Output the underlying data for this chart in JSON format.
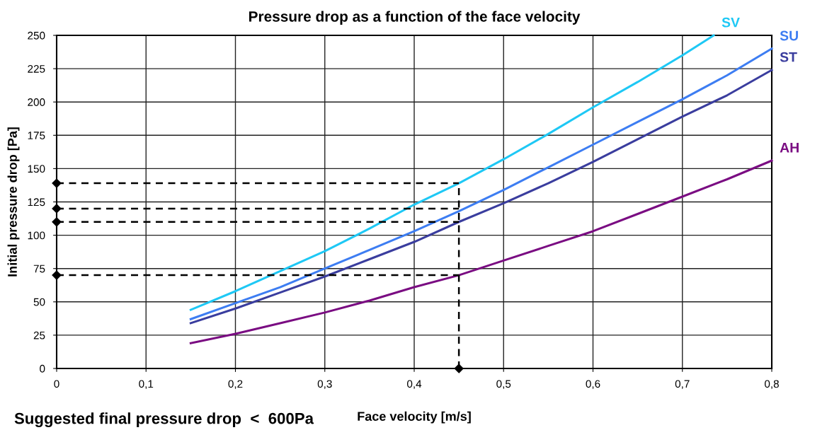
{
  "chart_data": {
    "type": "line",
    "title": "Pressure drop as a function of the face velocity",
    "xlabel": "Face velocity [m/s]",
    "ylabel": "Initial pressure drop [Pa]",
    "xlim": [
      0,
      0.8
    ],
    "ylim": [
      0,
      250
    ],
    "xticks": [
      0,
      {
        "value": 0.1,
        "label": "0,1"
      },
      {
        "value": 0.2,
        "label": "0,2"
      },
      {
        "value": 0.3,
        "label": "0,3"
      },
      {
        "value": 0.4,
        "label": "0,4"
      },
      {
        "value": 0.5,
        "label": "0,5"
      },
      {
        "value": 0.6,
        "label": "0,6"
      },
      {
        "value": 0.7,
        "label": "0,7"
      },
      {
        "value": 0.8,
        "label": "0,8"
      }
    ],
    "yticks": [
      0,
      25,
      50,
      75,
      100,
      125,
      150,
      175,
      200,
      225,
      250
    ],
    "grid": true,
    "legend": false,
    "series": [
      {
        "name": "SV",
        "color": "#1ec8f5",
        "x": [
          0.15,
          0.2,
          0.25,
          0.3,
          0.35,
          0.4,
          0.45,
          0.5,
          0.55,
          0.6,
          0.65,
          0.7,
          0.735
        ],
        "values": [
          44,
          58,
          73,
          88,
          105,
          123,
          139,
          157,
          176,
          196,
          215,
          235,
          250
        ]
      },
      {
        "name": "SU",
        "color": "#3d7df2",
        "x": [
          0.15,
          0.2,
          0.25,
          0.3,
          0.35,
          0.4,
          0.45,
          0.5,
          0.55,
          0.6,
          0.65,
          0.7,
          0.75,
          0.8
        ],
        "values": [
          37,
          49,
          61,
          75,
          89,
          103,
          118,
          134,
          151,
          168,
          185,
          202,
          220,
          240
        ]
      },
      {
        "name": "ST",
        "color": "#3a3d9e",
        "x": [
          0.15,
          0.2,
          0.25,
          0.3,
          0.35,
          0.4,
          0.45,
          0.5,
          0.55,
          0.6,
          0.65,
          0.7,
          0.75,
          0.8
        ],
        "values": [
          34,
          45,
          57,
          69,
          82,
          95,
          110,
          124,
          139,
          155,
          172,
          189,
          205,
          224
        ]
      },
      {
        "name": "AH",
        "color": "#7a0c82",
        "x": [
          0.15,
          0.2,
          0.25,
          0.3,
          0.35,
          0.4,
          0.45,
          0.5,
          0.55,
          0.6,
          0.65,
          0.7,
          0.75,
          0.8
        ],
        "values": [
          19,
          26,
          34,
          42,
          51,
          61,
          70,
          81,
          92,
          103,
          116,
          129,
          142,
          156
        ]
      },
      {
        "color": "#000000",
        "line_style": "dashed",
        "marker": "diamond",
        "x": [
          0,
          0.45
        ],
        "values": [
          139,
          139
        ]
      },
      {
        "color": "#000000",
        "line_style": "dashed",
        "marker": "diamond",
        "x": [
          0,
          0.45
        ],
        "values": [
          120,
          120
        ]
      },
      {
        "color": "#000000",
        "line_style": "dashed",
        "marker": "diamond",
        "x": [
          0,
          0.45
        ],
        "values": [
          110,
          110
        ]
      },
      {
        "color": "#000000",
        "line_style": "dashed",
        "marker": "diamond",
        "x": [
          0,
          0.45
        ],
        "values": [
          70,
          70
        ]
      },
      {
        "color": "#000000",
        "line_style": "dashed",
        "marker": "diamond",
        "x": [
          0.45,
          0.45
        ],
        "values": [
          0,
          139
        ]
      }
    ],
    "annotations": [
      "Suggested final pressure drop  <  600Pa"
    ]
  }
}
